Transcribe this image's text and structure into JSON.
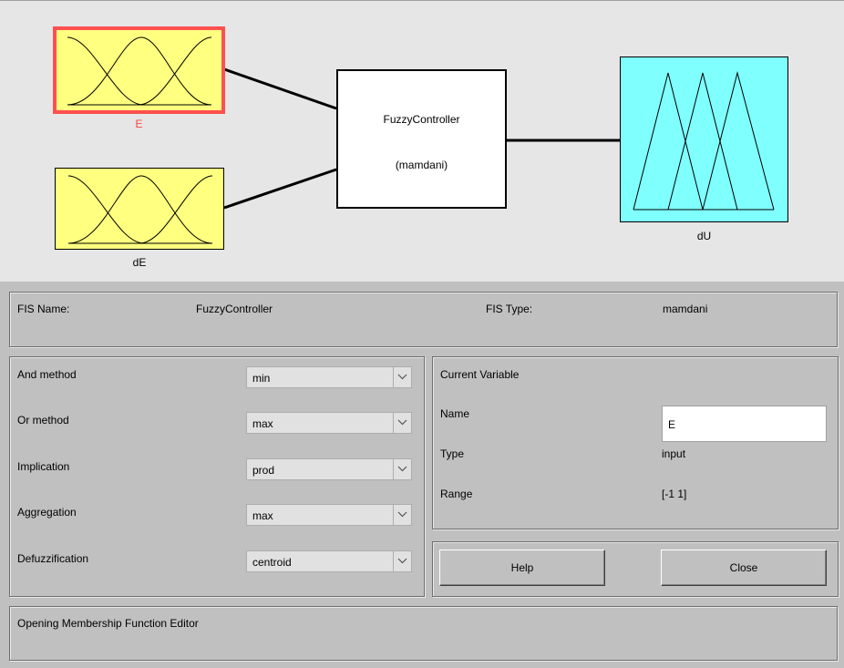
{
  "diagram": {
    "inputs": [
      {
        "name": "E",
        "selected": true,
        "label_color": "#ff4040"
      },
      {
        "name": "dE",
        "selected": false,
        "label_color": "#000000"
      }
    ],
    "output": {
      "name": "dU"
    },
    "system": {
      "name": "FuzzyController",
      "type": "(mamdani)"
    },
    "colors": {
      "input_fill": "#ffff80",
      "output_fill": "#80ffff",
      "selected_border": "#ff5050"
    }
  },
  "fis": {
    "name_label": "FIS Name:",
    "name_value": "FuzzyController",
    "type_label": "FIS Type:",
    "type_value": "mamdani"
  },
  "methods": [
    {
      "label": "And method",
      "value": "min"
    },
    {
      "label": "Or method",
      "value": "max"
    },
    {
      "label": "Implication",
      "value": "prod"
    },
    {
      "label": "Aggregation",
      "value": "max"
    },
    {
      "label": "Defuzzification",
      "value": "centroid"
    }
  ],
  "current_variable": {
    "title": "Current Variable",
    "name_label": "Name",
    "name_value": "E",
    "type_label": "Type",
    "type_value": "input",
    "range_label": "Range",
    "range_value": "[-1 1]"
  },
  "buttons": {
    "help": "Help",
    "close": "Close"
  },
  "status": "Opening Membership Function Editor"
}
